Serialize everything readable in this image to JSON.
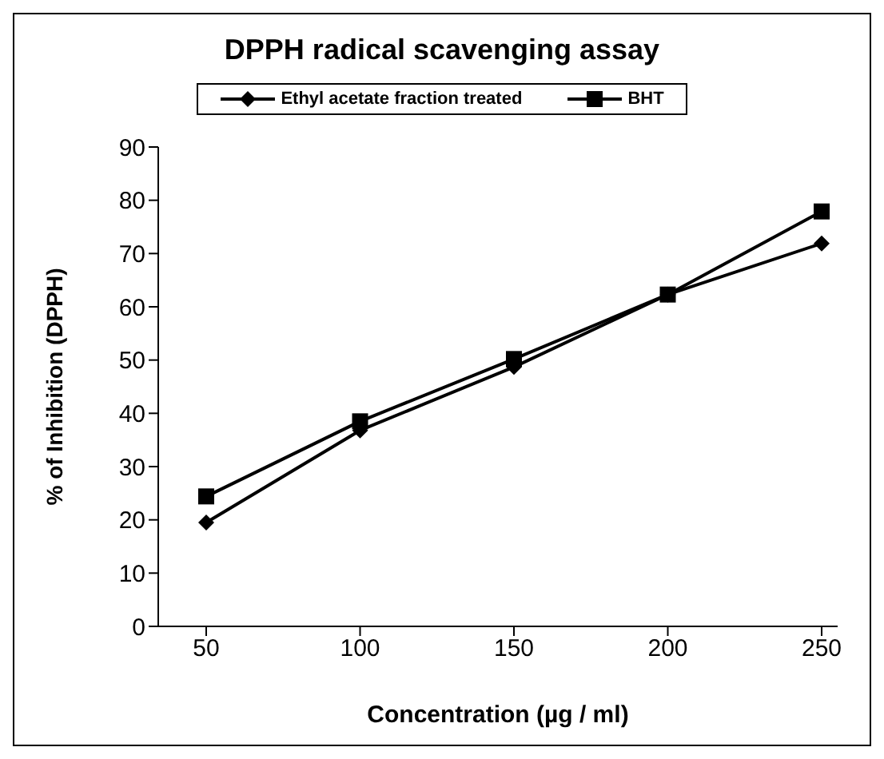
{
  "chart_data": {
    "type": "line",
    "title": "DPPH radical scavenging assay",
    "xlabel": "Concentration (µg / ml)",
    "ylabel": "% of Inhibition (DPPH)",
    "categories": [
      "50",
      "100",
      "150",
      "200",
      "250"
    ],
    "series": [
      {
        "name": "Ethyl acetate fraction treated",
        "color": "#000000",
        "marker": "diamond",
        "values": [
          19.5,
          36.8,
          48.7,
          62.3,
          71.9
        ]
      },
      {
        "name": "BHT",
        "color": "#000000",
        "marker": "square",
        "values": [
          24.4,
          38.5,
          50.2,
          62.3,
          77.9
        ]
      }
    ],
    "ylim": [
      0,
      90
    ],
    "yticks": [
      0,
      10,
      20,
      30,
      40,
      50,
      60,
      70,
      80,
      90
    ],
    "legend": "top"
  }
}
